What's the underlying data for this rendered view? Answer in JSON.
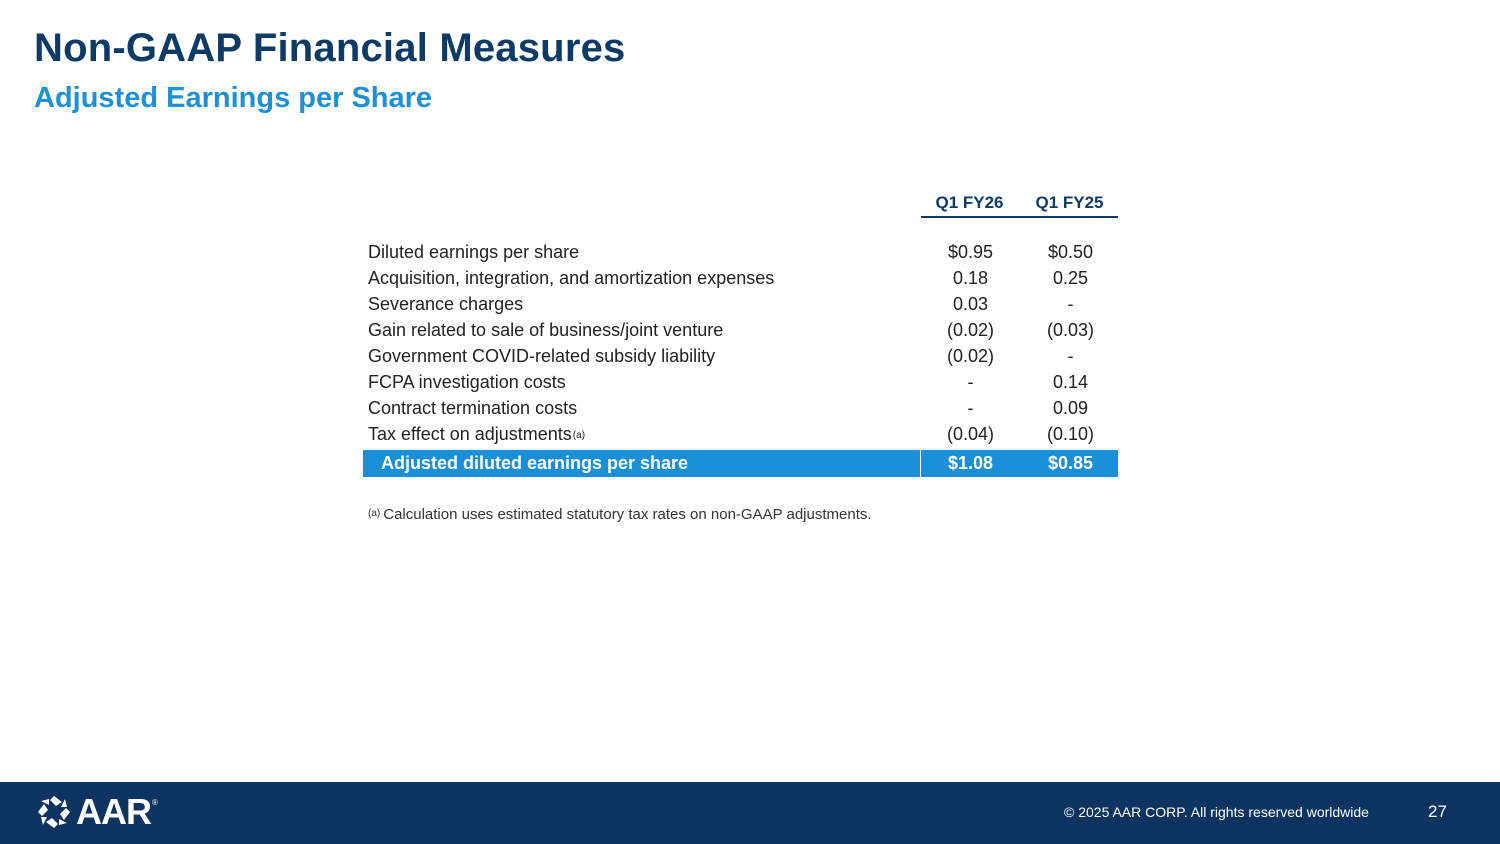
{
  "slide": {
    "title": "Non-GAAP Financial Measures",
    "subtitle": "Adjusted Earnings per Share"
  },
  "table": {
    "columns": [
      "Q1 FY26",
      "Q1 FY25"
    ],
    "rows": [
      {
        "label": "Diluted earnings per share",
        "v1": "$0.95",
        "v2": "$0.50"
      },
      {
        "label": "Acquisition, integration, and amortization expenses",
        "v1": "0.18",
        "v2": "0.25"
      },
      {
        "label": "Severance charges",
        "v1": "0.03",
        "v2": "-"
      },
      {
        "label": "Gain related to sale of business/joint venture",
        "v1": "(0.02)",
        "v2": "(0.03)"
      },
      {
        "label": "Government COVID-related subsidy liability",
        "v1": "(0.02)",
        "v2": "-"
      },
      {
        "label": "FCPA investigation costs",
        "v1": "-",
        "v2": "0.14"
      },
      {
        "label": "Contract termination costs",
        "v1": "-",
        "v2": "0.09"
      },
      {
        "label": "Tax effect on adjustments",
        "label_sup": "(a)",
        "v1": "(0.04)",
        "v2": "(0.10)"
      }
    ],
    "total": {
      "label": "Adjusted diluted earnings per share",
      "v1": "$1.08",
      "v2": "$0.85"
    }
  },
  "footnote": {
    "marker": "(a)",
    "text": "Calculation uses estimated statutory tax rates on non-GAAP adjustments."
  },
  "footer": {
    "logo_text": "AAR",
    "logo_reg": "®",
    "copyright": "© 2025 AAR CORP. All rights reserved worldwide",
    "page_number": "27"
  },
  "colors": {
    "title": "#0d3b66",
    "subtitle": "#1e90d6",
    "total_row": "#1a8fd8",
    "footer": "#0d3461"
  }
}
